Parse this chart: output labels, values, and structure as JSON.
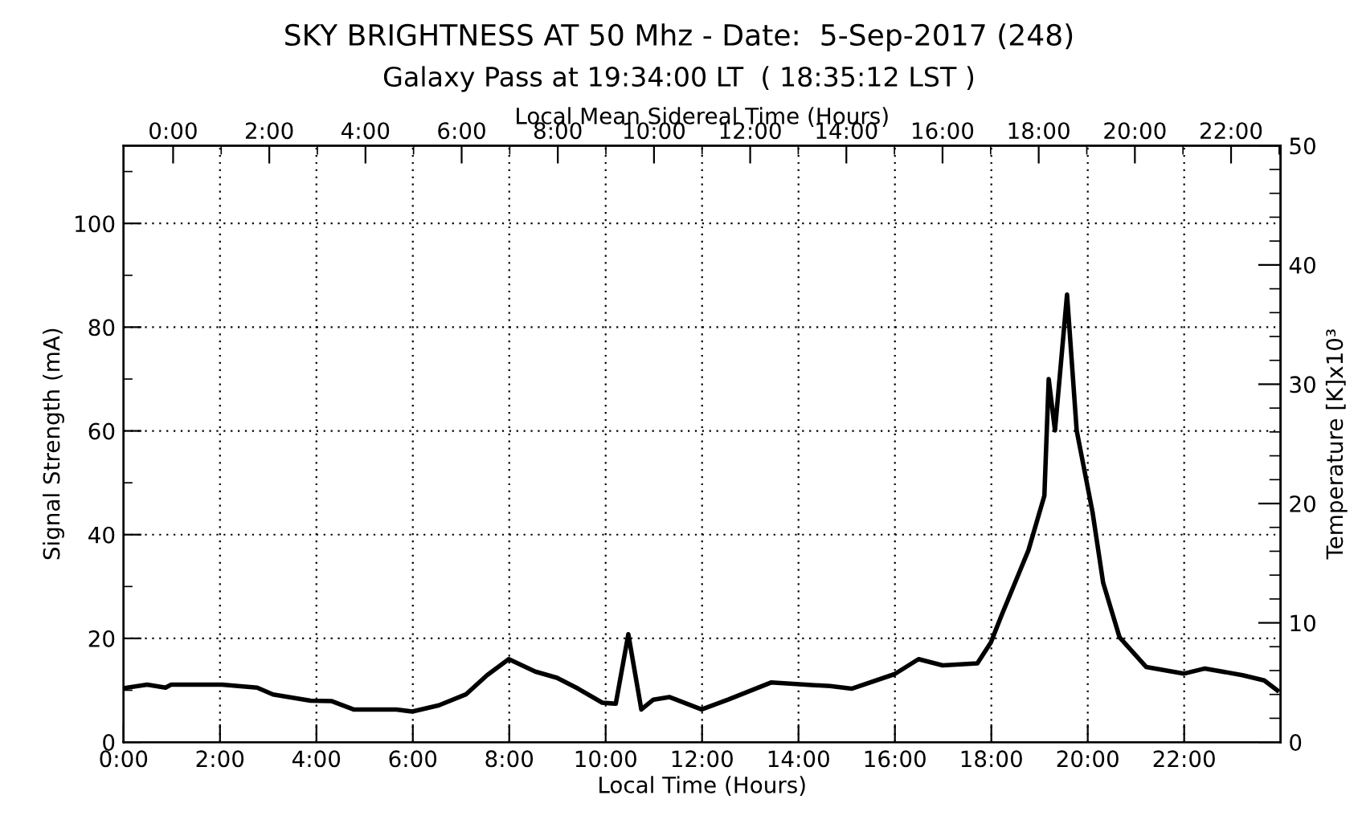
{
  "chart_data": {
    "type": "line",
    "title": "SKY BRIGHTNESS AT 50 Mhz - Date:  5-Sep-2017 (248)",
    "subtitle": "Galaxy Pass at 19:34:00 LT  ( 18:35:12 LST )",
    "xlabel": "Local Time (Hours)",
    "ylabel": "Signal Strength (mA)",
    "y2label": "Temperature [K]x10³",
    "x2label": "Local Mean Sidereal Time (Hours)",
    "x": [
      0,
      0.49,
      0.87,
      0.99,
      2.04,
      2.77,
      3.1,
      3.88,
      4.32,
      4.77,
      5.66,
      5.99,
      6.54,
      7.1,
      7.54,
      7.99,
      8.54,
      8.99,
      9.43,
      9.93,
      10.21,
      10.47,
      10.74,
      10.99,
      11.32,
      11.99,
      12.54,
      13.43,
      14.66,
      15.1,
      15.99,
      16.49,
      16.99,
      17.71,
      17.99,
      18.21,
      18.77,
      19.1,
      19.19,
      19.32,
      19.57,
      19.77,
      20.1,
      20.32,
      20.66,
      21.21,
      21.99,
      22.43,
      23.21,
      23.66,
      23.93
    ],
    "series": [
      {
        "color": "#000000",
        "values": [
          10.4,
          11.1,
          10.5,
          11.1,
          11.1,
          10.5,
          9.2,
          8.0,
          7.9,
          6.3,
          6.3,
          5.9,
          7.1,
          9.2,
          12.9,
          16.0,
          13.6,
          12.4,
          10.3,
          7.6,
          7.4,
          20.8,
          6.3,
          8.2,
          8.7,
          6.3,
          8.2,
          11.5,
          10.8,
          10.3,
          13.1,
          16.0,
          14.8,
          15.2,
          19.2,
          24.4,
          37.0,
          47.5,
          70.0,
          60.1,
          86.3,
          60.1,
          44.3,
          30.7,
          20.2,
          14.5,
          13.2,
          14.2,
          12.9,
          11.9,
          10.0
        ]
      }
    ],
    "xlim": [
      0,
      24
    ],
    "ylim": [
      0,
      115
    ],
    "y2lim": [
      0,
      50
    ],
    "x2lim": [
      -1.03,
      23.03
    ],
    "xticks": [
      {
        "value": 0,
        "label": "0:00"
      },
      {
        "value": 2,
        "label": "2:00"
      },
      {
        "value": 4,
        "label": "4:00"
      },
      {
        "value": 6,
        "label": "6:00"
      },
      {
        "value": 8,
        "label": "8:00"
      },
      {
        "value": 10,
        "label": "10:00"
      },
      {
        "value": 12,
        "label": "12:00"
      },
      {
        "value": 14,
        "label": "14:00"
      },
      {
        "value": 16,
        "label": "16:00"
      },
      {
        "value": 18,
        "label": "18:00"
      },
      {
        "value": 20,
        "label": "20:00"
      },
      {
        "value": 22,
        "label": "22:00"
      }
    ],
    "x2ticks": [
      {
        "value": 0,
        "label": "0:00"
      },
      {
        "value": 1,
        "label": null
      },
      {
        "value": 2,
        "label": "2:00"
      },
      {
        "value": 3,
        "label": null
      },
      {
        "value": 4,
        "label": "4:00"
      },
      {
        "value": 5,
        "label": null
      },
      {
        "value": 6,
        "label": "6:00"
      },
      {
        "value": 7,
        "label": null
      },
      {
        "value": 8,
        "label": "8:00"
      },
      {
        "value": 9,
        "label": null
      },
      {
        "value": 10,
        "label": "10:00"
      },
      {
        "value": 11,
        "label": null
      },
      {
        "value": 12,
        "label": "12:00"
      },
      {
        "value": 13,
        "label": null
      },
      {
        "value": 14,
        "label": "14:00"
      },
      {
        "value": 15,
        "label": null
      },
      {
        "value": 16,
        "label": "16:00"
      },
      {
        "value": 17,
        "label": null
      },
      {
        "value": 18,
        "label": "18:00"
      },
      {
        "value": 19,
        "label": null
      },
      {
        "value": 20,
        "label": "20:00"
      },
      {
        "value": 21,
        "label": null
      },
      {
        "value": 22,
        "label": "22:00"
      },
      {
        "value": 23,
        "label": null
      }
    ],
    "yticks": [
      0,
      {
        "value": 10,
        "label": null
      },
      20,
      {
        "value": 30,
        "label": null
      },
      40,
      {
        "value": 50,
        "label": null
      },
      60,
      {
        "value": 70,
        "label": null
      },
      80,
      {
        "value": 90,
        "label": null
      },
      100,
      {
        "value": 110,
        "label": null
      }
    ],
    "y2ticks": [
      0,
      {
        "value": 2,
        "label": null
      },
      {
        "value": 4,
        "label": null
      },
      {
        "value": 6,
        "label": null
      },
      {
        "value": 8,
        "label": null
      },
      10,
      {
        "value": 12,
        "label": null
      },
      {
        "value": 14,
        "label": null
      },
      {
        "value": 16,
        "label": null
      },
      {
        "value": 18,
        "label": null
      },
      20,
      {
        "value": 22,
        "label": null
      },
      {
        "value": 24,
        "label": null
      },
      {
        "value": 26,
        "label": null
      },
      {
        "value": 28,
        "label": null
      },
      30,
      {
        "value": 32,
        "label": null
      },
      {
        "value": 34,
        "label": null
      },
      {
        "value": 36,
        "label": null
      },
      {
        "value": 38,
        "label": null
      },
      40,
      {
        "value": 42,
        "label": null
      },
      {
        "value": 44,
        "label": null
      },
      {
        "value": 46,
        "label": null
      },
      {
        "value": 48,
        "label": null
      },
      50
    ],
    "grid": true,
    "line_style": "solid",
    "marker": "none"
  }
}
